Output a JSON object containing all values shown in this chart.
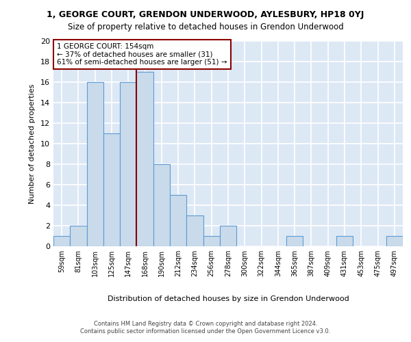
{
  "title_line1": "1, GEORGE COURT, GRENDON UNDERWOOD, AYLESBURY, HP18 0YJ",
  "title_line2": "Size of property relative to detached houses in Grendon Underwood",
  "xlabel": "Distribution of detached houses by size in Grendon Underwood",
  "ylabel": "Number of detached properties",
  "footer_line1": "Contains HM Land Registry data © Crown copyright and database right 2024.",
  "footer_line2": "Contains public sector information licensed under the Open Government Licence v3.0.",
  "annotation_line1": "1 GEORGE COURT: 154sqm",
  "annotation_line2": "← 37% of detached houses are smaller (31)",
  "annotation_line3": "61% of semi-detached houses are larger (51) →",
  "property_size": 154,
  "bin_labels": [
    "59sqm",
    "81sqm",
    "103sqm",
    "125sqm",
    "147sqm",
    "168sqm",
    "190sqm",
    "212sqm",
    "234sqm",
    "256sqm",
    "278sqm",
    "300sqm",
    "322sqm",
    "344sqm",
    "365sqm",
    "387sqm",
    "409sqm",
    "431sqm",
    "453sqm",
    "475sqm",
    "497sqm"
  ],
  "counts": [
    1,
    2,
    16,
    11,
    16,
    17,
    8,
    5,
    3,
    1,
    2,
    0,
    0,
    0,
    1,
    0,
    0,
    1,
    0,
    0,
    1
  ],
  "bar_color": "#c9daea",
  "bar_edge_color": "#5b9bd5",
  "vline_color": "#8b0000",
  "annotation_box_color": "#ffffff",
  "annotation_box_edge_color": "#8b0000",
  "background_color": "#dde8f5",
  "grid_color": "#ffffff",
  "fig_background": "#ffffff",
  "ylim": [
    0,
    20
  ],
  "yticks": [
    0,
    2,
    4,
    6,
    8,
    10,
    12,
    14,
    16,
    18,
    20
  ],
  "vline_bar_index": 4.5
}
